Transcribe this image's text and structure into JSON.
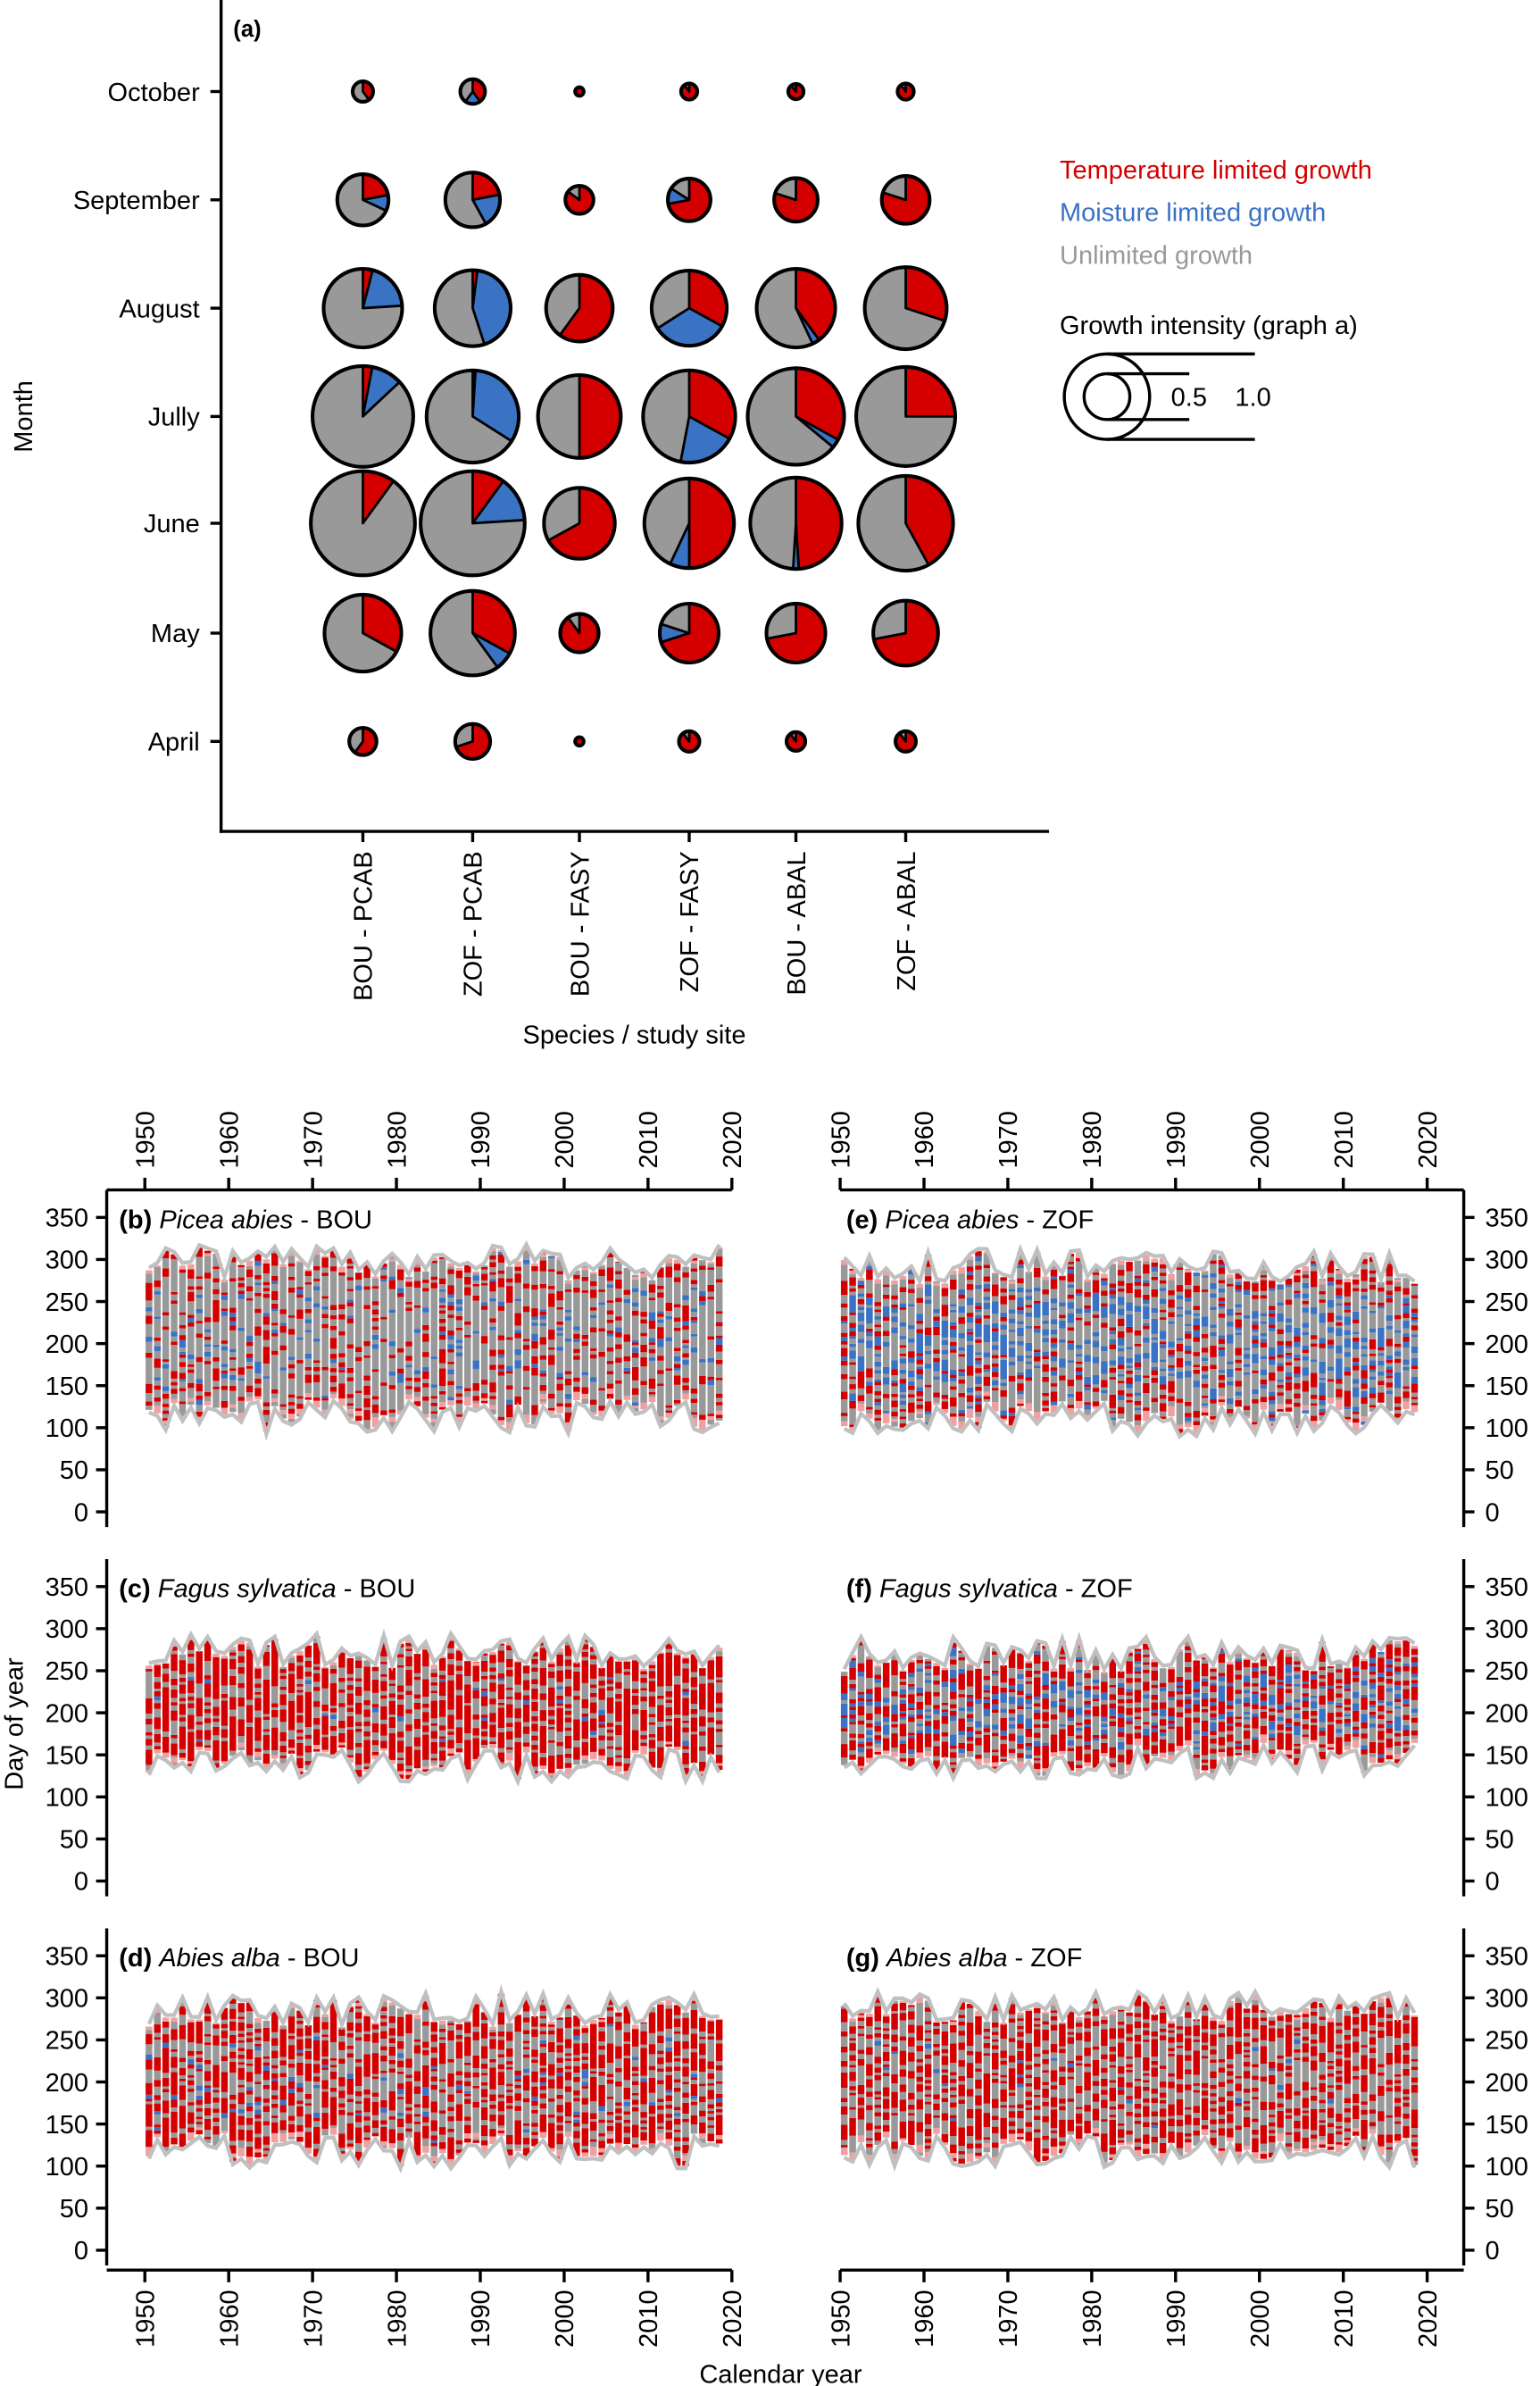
{
  "chart_data": [
    {
      "type": "pie-matrix",
      "panel_label": "(a)",
      "xlabel": "Species / study site",
      "ylabel": "Month",
      "categories": [
        "BOU - PCAB",
        "ZOF - PCAB",
        "BOU - FASY",
        "ZOF - FASY",
        "BOU - ABAL",
        "ZOF - ABAL"
      ],
      "months": [
        "October",
        "September",
        "August",
        "Jully",
        "June",
        "May",
        "April"
      ],
      "legend": {
        "temperature": "Temperature limited growth",
        "moisture": "Moisture limited growth",
        "unlimited": "Unlimited growth",
        "size_title": "Growth intensity (graph a)",
        "size_small": "0.5",
        "size_large": "1.0"
      },
      "colors": {
        "temperature": "#d40000",
        "moisture": "#3a72c4",
        "unlimited": "#999999"
      },
      "cells_note_order": "rows follow months, columns follow categories; each cell [intensity, temperature, moisture, unlimited]",
      "cells": [
        [
          [
            0.24,
            0.4,
            0,
            0.6
          ],
          [
            0.29,
            0.4,
            0.2,
            0.4
          ],
          [
            0.1,
            1,
            0,
            0
          ],
          [
            0.19,
            0.9,
            0,
            0.1
          ],
          [
            0.18,
            0.9,
            0,
            0.1
          ],
          [
            0.19,
            0.9,
            0,
            0.1
          ]
        ],
        [
          [
            0.6,
            0.22,
            0.1,
            0.68
          ],
          [
            0.64,
            0.22,
            0.2,
            0.58
          ],
          [
            0.33,
            0.85,
            0,
            0.15
          ],
          [
            0.5,
            0.72,
            0.12,
            0.16
          ],
          [
            0.51,
            0.8,
            0,
            0.2
          ],
          [
            0.56,
            0.8,
            0,
            0.2
          ]
        ],
        [
          [
            0.92,
            0.04,
            0.2,
            0.76
          ],
          [
            0.89,
            0.02,
            0.43,
            0.55
          ],
          [
            0.78,
            0.6,
            0,
            0.4
          ],
          [
            0.88,
            0.33,
            0.33,
            0.34
          ],
          [
            0.92,
            0.4,
            0.03,
            0.57
          ],
          [
            0.96,
            0.3,
            0,
            0.7
          ]
        ],
        [
          [
            1.18,
            0.03,
            0.1,
            0.87
          ],
          [
            1.08,
            0.01,
            0.33,
            0.66
          ],
          [
            0.97,
            0.5,
            0,
            0.5
          ],
          [
            1.08,
            0.33,
            0.2,
            0.47
          ],
          [
            1.13,
            0.33,
            0.03,
            0.64
          ],
          [
            1.16,
            0.25,
            0,
            0.75
          ]
        ],
        [
          [
            1.22,
            0.1,
            0,
            0.9
          ],
          [
            1.22,
            0.1,
            0.14,
            0.76
          ],
          [
            0.83,
            0.67,
            0,
            0.33
          ],
          [
            1.05,
            0.5,
            0.07,
            0.43
          ],
          [
            1.07,
            0.49,
            0.02,
            0.49
          ],
          [
            1.11,
            0.42,
            0,
            0.58
          ]
        ],
        [
          [
            0.9,
            0.33,
            0,
            0.67
          ],
          [
            0.99,
            0.33,
            0.07,
            0.6
          ],
          [
            0.45,
            0.9,
            0,
            0.1
          ],
          [
            0.69,
            0.7,
            0.1,
            0.2
          ],
          [
            0.69,
            0.72,
            0,
            0.28
          ],
          [
            0.76,
            0.72,
            0,
            0.28
          ]
        ],
        [
          [
            0.32,
            0.6,
            0,
            0.4
          ],
          [
            0.41,
            0.7,
            0,
            0.3
          ],
          [
            0.1,
            1,
            0,
            0
          ],
          [
            0.24,
            0.9,
            0,
            0.1
          ],
          [
            0.22,
            0.9,
            0,
            0.1
          ],
          [
            0.24,
            0.9,
            0,
            0.1
          ]
        ]
      ]
    },
    {
      "type": "heatmap",
      "xlabel": "Calendar year",
      "ylabel": "Day of year",
      "xlim": [
        1950,
        2020
      ],
      "ylim": [
        0,
        350
      ],
      "x_ticks": [
        "1950",
        "1960",
        "1970",
        "1980",
        "1990",
        "2000",
        "2010",
        "2020"
      ],
      "y_ticks": [
        "0",
        "50",
        "100",
        "150",
        "200",
        "250",
        "300",
        "350"
      ],
      "years": [
        1950,
        2018
      ],
      "panels": [
        {
          "letter": "(b)",
          "species": "Picea abies",
          "site": " - BOU",
          "season_start": 115,
          "season_end": 295,
          "temperature": 0.22,
          "moisture": 0.08,
          "unlimited": 0.7
        },
        {
          "letter": "(c)",
          "species": "Fagus sylvatica",
          "site": " - BOU",
          "season_start": 140,
          "season_end": 272,
          "temperature": 0.65,
          "moisture": 0.01,
          "unlimited": 0.34
        },
        {
          "letter": "(d)",
          "species": "Abies alba",
          "site": " - BOU",
          "season_start": 120,
          "season_end": 285,
          "temperature": 0.55,
          "moisture": 0.03,
          "unlimited": 0.42
        },
        {
          "letter": "(e)",
          "species": "Picea abies",
          "site": " - ZOF",
          "season_start": 112,
          "season_end": 290,
          "temperature": 0.2,
          "moisture": 0.27,
          "unlimited": 0.53
        },
        {
          "letter": "(f)",
          "species": "Fagus sylvatica",
          "site": " - ZOF",
          "season_start": 145,
          "season_end": 268,
          "temperature": 0.45,
          "moisture": 0.2,
          "unlimited": 0.35
        },
        {
          "letter": "(g)",
          "species": "Abies alba",
          "site": " - ZOF",
          "season_start": 120,
          "season_end": 285,
          "temperature": 0.5,
          "moisture": 0.01,
          "unlimited": 0.49
        }
      ]
    }
  ]
}
